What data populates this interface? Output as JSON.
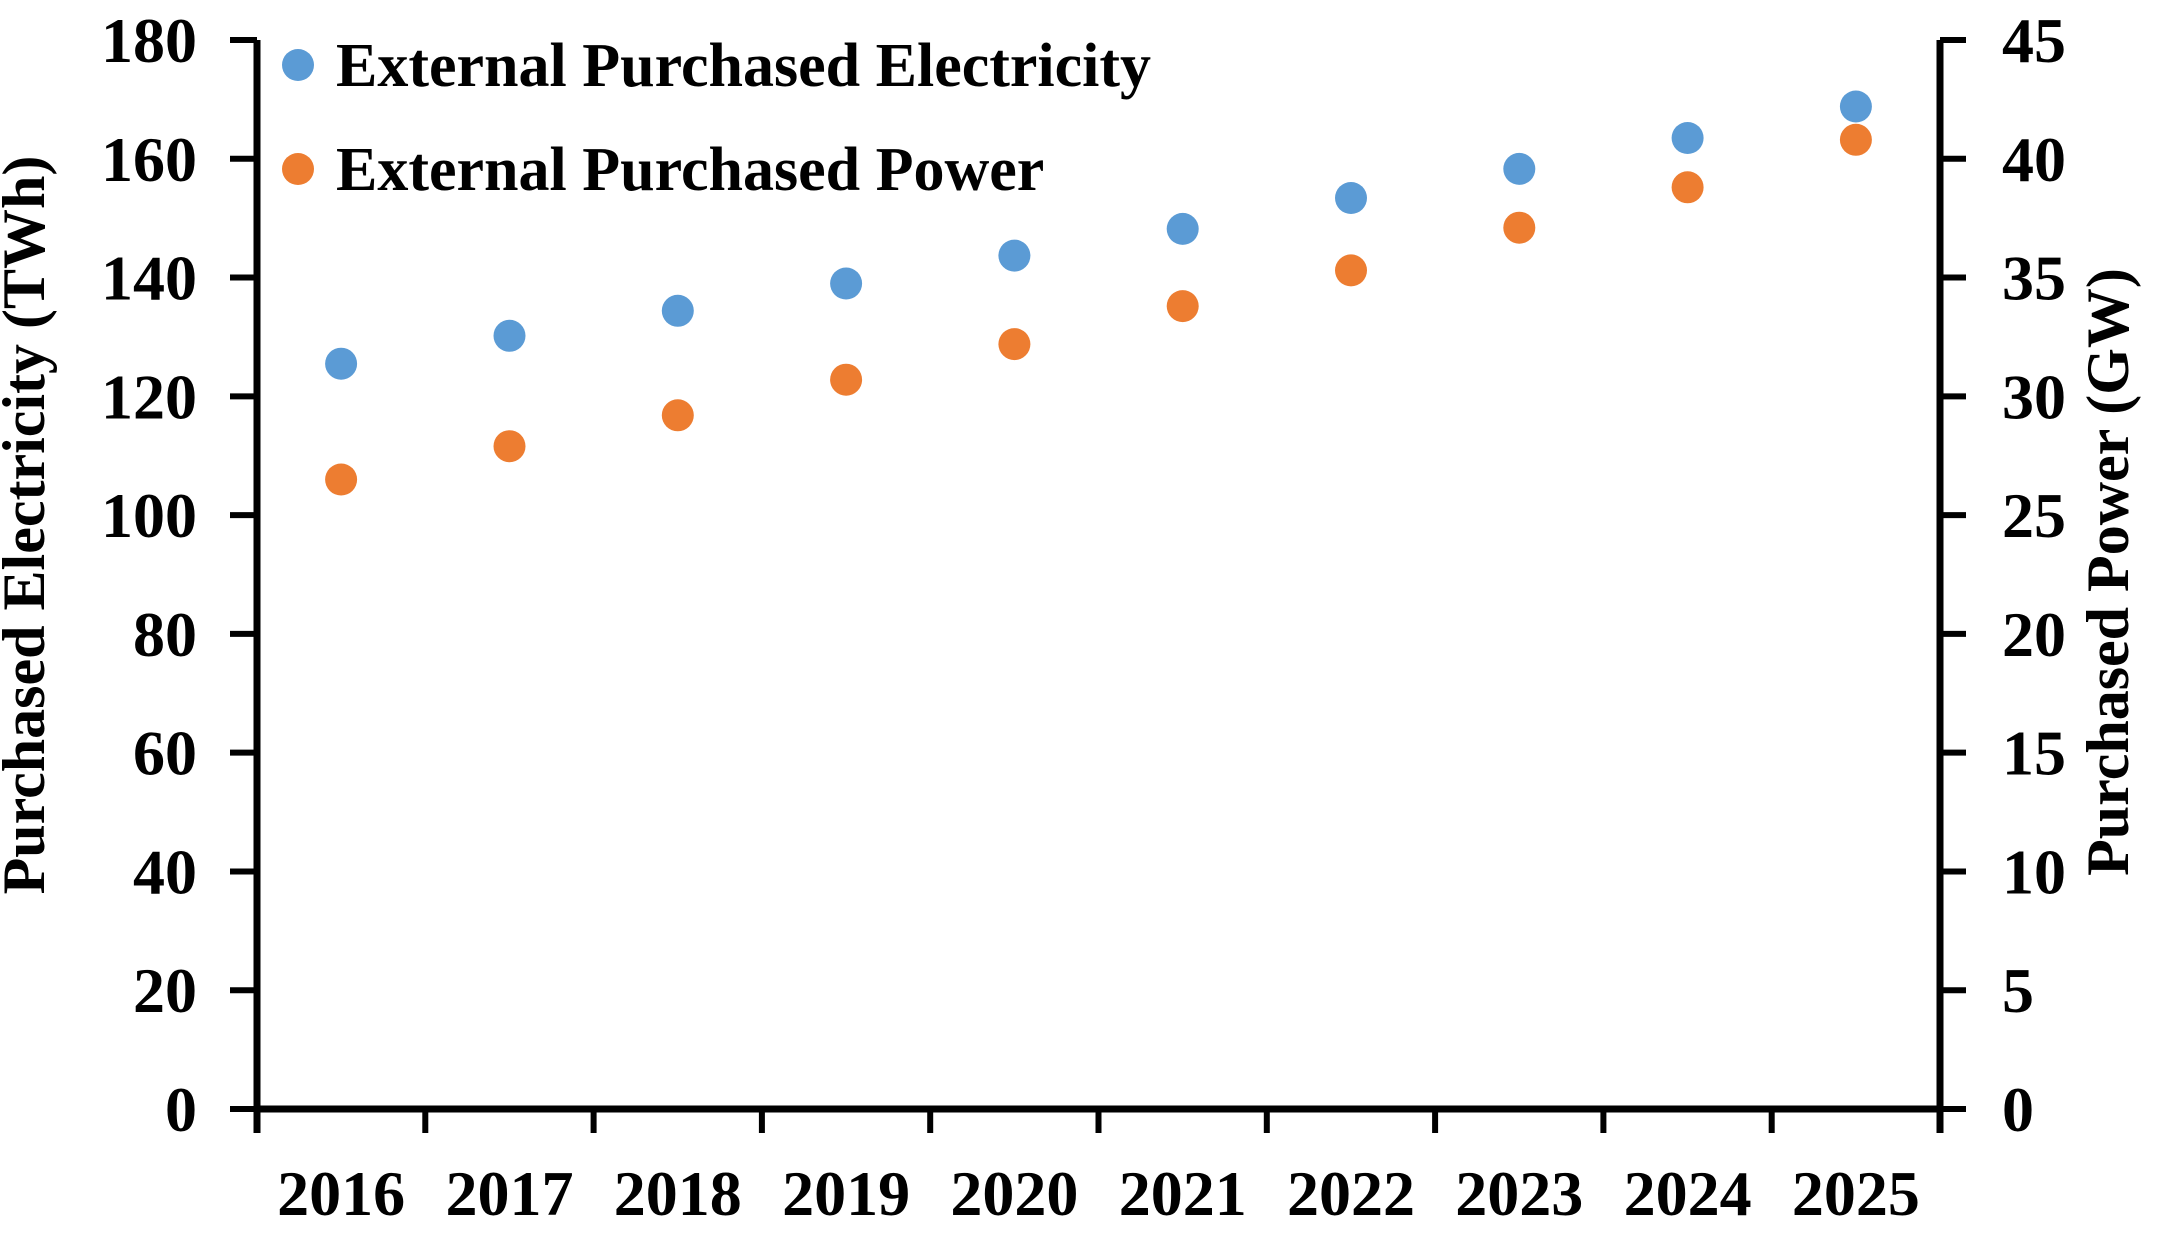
{
  "chart_data": {
    "type": "scatter",
    "title": "",
    "xlabel": "",
    "categories": [
      "2016",
      "2017",
      "2018",
      "2019",
      "2020",
      "2021",
      "2022",
      "2023",
      "2024",
      "2025"
    ],
    "series": [
      {
        "id": "electricity",
        "name": "External Purchased Electricity",
        "axis": "left",
        "color": "#5B9BD5",
        "values": [
          125.5,
          130.2,
          134.4,
          139.0,
          143.7,
          148.2,
          153.4,
          158.3,
          163.5,
          168.8
        ]
      },
      {
        "id": "power",
        "name": "External Purchased Power",
        "axis": "right",
        "color": "#ED7D31",
        "values": [
          26.5,
          27.9,
          29.2,
          30.7,
          32.2,
          33.8,
          35.3,
          37.1,
          38.8,
          40.8
        ]
      }
    ],
    "left_axis": {
      "label": "Purchased Electricity (TWh)",
      "min": 0,
      "max": 180,
      "step": 20
    },
    "right_axis": {
      "label": "Purchased Power (GW)",
      "min": 0,
      "max": 45,
      "step": 5
    },
    "legend_position": "top-left",
    "grid": false
  },
  "style": {
    "axis_color": "#000000",
    "background": "#FFFFFF",
    "text_color": "#000000"
  }
}
